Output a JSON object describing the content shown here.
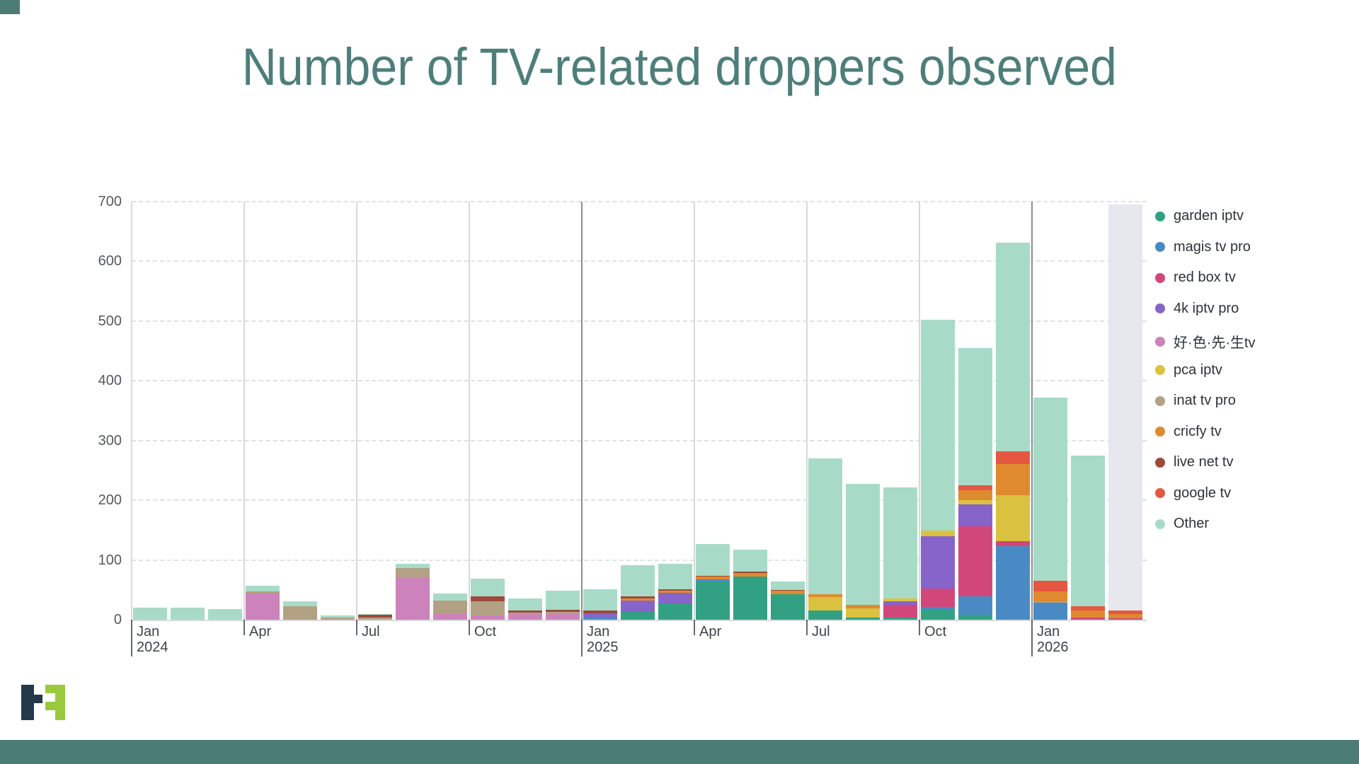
{
  "page": {
    "title": "Number of TV-related droppers observed",
    "title_color": "#4e7e7a",
    "accent_teal": "#4b7d76",
    "logo_navy": "#24394a",
    "logo_green": "#9bc93d"
  },
  "chart_data": {
    "type": "bar",
    "stacked": true,
    "title": "Number of TV-related droppers observed",
    "xlabel": "",
    "ylabel": "",
    "ylim": [
      0,
      700
    ],
    "yticks": [
      0,
      100,
      200,
      300,
      400,
      500,
      600,
      700
    ],
    "grid": "horizontal-dashed-and-quarter-vertical",
    "legend_position": "right",
    "last_bar_partial": true,
    "partial_fill": "#e6e8ee",
    "categories": [
      "Jan 2024",
      "Feb 2024",
      "Mar 2024",
      "Apr 2024",
      "May 2024",
      "Jun 2024",
      "Jul 2024",
      "Aug 2024",
      "Sep 2024",
      "Oct 2024",
      "Nov 2024",
      "Dec 2024",
      "Jan 2025",
      "Feb 2025",
      "Mar 2025",
      "Apr 2025",
      "May 2025",
      "Jun 2025",
      "Jul 2025",
      "Aug 2025",
      "Sep 2025",
      "Oct 2025",
      "Nov 2025",
      "Dec 2025",
      "Jan 2026",
      "Feb 2026",
      "Mar 2026"
    ],
    "x_ticks": [
      {
        "month_index": 0,
        "label": "Jan",
        "year": "2024"
      },
      {
        "month_index": 3,
        "label": "Apr"
      },
      {
        "month_index": 6,
        "label": "Jul"
      },
      {
        "month_index": 9,
        "label": "Oct"
      },
      {
        "month_index": 12,
        "label": "Jan",
        "year": "2025"
      },
      {
        "month_index": 15,
        "label": "Apr"
      },
      {
        "month_index": 18,
        "label": "Jul"
      },
      {
        "month_index": 21,
        "label": "Oct"
      },
      {
        "month_index": 24,
        "label": "Jan",
        "year": "2026"
      }
    ],
    "series": [
      {
        "name": "garden iptv",
        "color": "#32a183",
        "values": [
          0,
          0,
          0,
          0,
          0,
          0,
          0,
          0,
          0,
          0,
          0,
          0,
          0,
          13,
          27,
          64,
          72,
          43,
          15,
          3,
          3,
          17,
          8,
          0,
          0,
          0,
          0
        ]
      },
      {
        "name": "magis tv pro",
        "color": "#4a8ac4",
        "values": [
          0,
          0,
          0,
          0,
          0,
          0,
          0,
          0,
          0,
          0,
          0,
          0,
          5,
          0,
          0,
          3,
          0,
          0,
          0,
          0,
          0,
          4,
          31,
          123,
          28,
          0,
          0
        ]
      },
      {
        "name": "red box tv",
        "color": "#d1477a",
        "values": [
          0,
          0,
          0,
          0,
          0,
          0,
          0,
          0,
          0,
          0,
          0,
          0,
          0,
          0,
          0,
          0,
          0,
          0,
          0,
          0,
          22,
          31,
          117,
          8,
          0,
          3,
          2
        ]
      },
      {
        "name": "4k iptv pro",
        "color": "#8764c9",
        "values": [
          0,
          0,
          0,
          0,
          0,
          0,
          0,
          0,
          0,
          0,
          0,
          0,
          6,
          19,
          18,
          0,
          0,
          0,
          0,
          0,
          6,
          88,
          37,
          0,
          0,
          0,
          0
        ]
      },
      {
        "name": "好·色·先·生tv",
        "color": "#cc82ba",
        "values": [
          0,
          0,
          0,
          44,
          0,
          0,
          0,
          70,
          10,
          7,
          9,
          10,
          0,
          0,
          0,
          0,
          0,
          0,
          0,
          0,
          0,
          0,
          0,
          0,
          0,
          0,
          0
        ]
      },
      {
        "name": "pca iptv",
        "color": "#dbc140",
        "values": [
          0,
          0,
          0,
          0,
          0,
          0,
          0,
          0,
          0,
          0,
          0,
          0,
          0,
          0,
          0,
          0,
          0,
          0,
          23,
          16,
          5,
          9,
          7,
          77,
          0,
          0,
          0
        ]
      },
      {
        "name": "inat tv pro",
        "color": "#b2a184",
        "values": [
          0,
          0,
          0,
          3,
          22,
          4,
          4,
          16,
          22,
          24,
          3,
          3,
          0,
          0,
          0,
          0,
          0,
          0,
          0,
          0,
          0,
          0,
          0,
          0,
          3,
          0,
          0
        ]
      },
      {
        "name": "cricfy tv",
        "color": "#df8a2e",
        "values": [
          0,
          0,
          0,
          0,
          0,
          0,
          0,
          0,
          0,
          0,
          0,
          0,
          0,
          3,
          3,
          5,
          6,
          5,
          5,
          6,
          0,
          0,
          17,
          53,
          16,
          12,
          8
        ]
      },
      {
        "name": "live net tv",
        "color": "#9c4a3b",
        "values": [
          0,
          0,
          0,
          0,
          0,
          0,
          5,
          0,
          0,
          8,
          3,
          4,
          4,
          4,
          3,
          2,
          2,
          2,
          0,
          0,
          0,
          0,
          0,
          0,
          0,
          0,
          0
        ]
      },
      {
        "name": "google tv",
        "color": "#e65741",
        "values": [
          0,
          0,
          0,
          0,
          0,
          0,
          0,
          0,
          0,
          0,
          0,
          0,
          0,
          0,
          0,
          0,
          0,
          0,
          0,
          0,
          0,
          0,
          8,
          21,
          18,
          8,
          5
        ]
      },
      {
        "name": "Other",
        "color": "#a8dbc7",
        "values": [
          20,
          20,
          18,
          10,
          9,
          3,
          1,
          7,
          12,
          30,
          20,
          31,
          36,
          52,
          43,
          53,
          37,
          14,
          227,
          202,
          186,
          353,
          230,
          349,
          307,
          252,
          680
        ]
      }
    ]
  },
  "legend": {
    "items": [
      "garden iptv",
      "magis tv pro",
      "red box tv",
      "4k iptv pro",
      "好·色·先·生tv",
      "pca iptv",
      "inat tv pro",
      "cricfy tv",
      "live net tv",
      "google tv",
      "Other"
    ]
  }
}
